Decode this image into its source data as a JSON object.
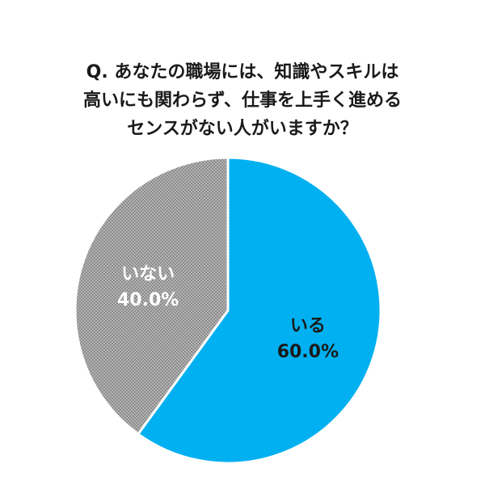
{
  "title_lines": [
    "Q. あなたの職場には、知識やスキルは",
    "高いにも関わらず、仕事を上手く進める",
    "センスがない人がいますか？"
  ],
  "chart_data": {
    "type": "pie",
    "title": "Q. あなたの職場には、知識やスキルは高いにも関わらず、仕事を上手く進めるセンスがない人がいますか？",
    "slices": [
      {
        "label": "いる",
        "value": 60.0,
        "value_label": "60.0%",
        "color": "#00b0f0",
        "text_color": "#1a1a1a",
        "fill": "solid"
      },
      {
        "label": "いない",
        "value": 40.0,
        "value_label": "40.0%",
        "color": "#8c8c8c",
        "text_color": "#ffffff",
        "fill": "dotted"
      }
    ],
    "start": "12 o'clock",
    "direction": "clockwise"
  }
}
